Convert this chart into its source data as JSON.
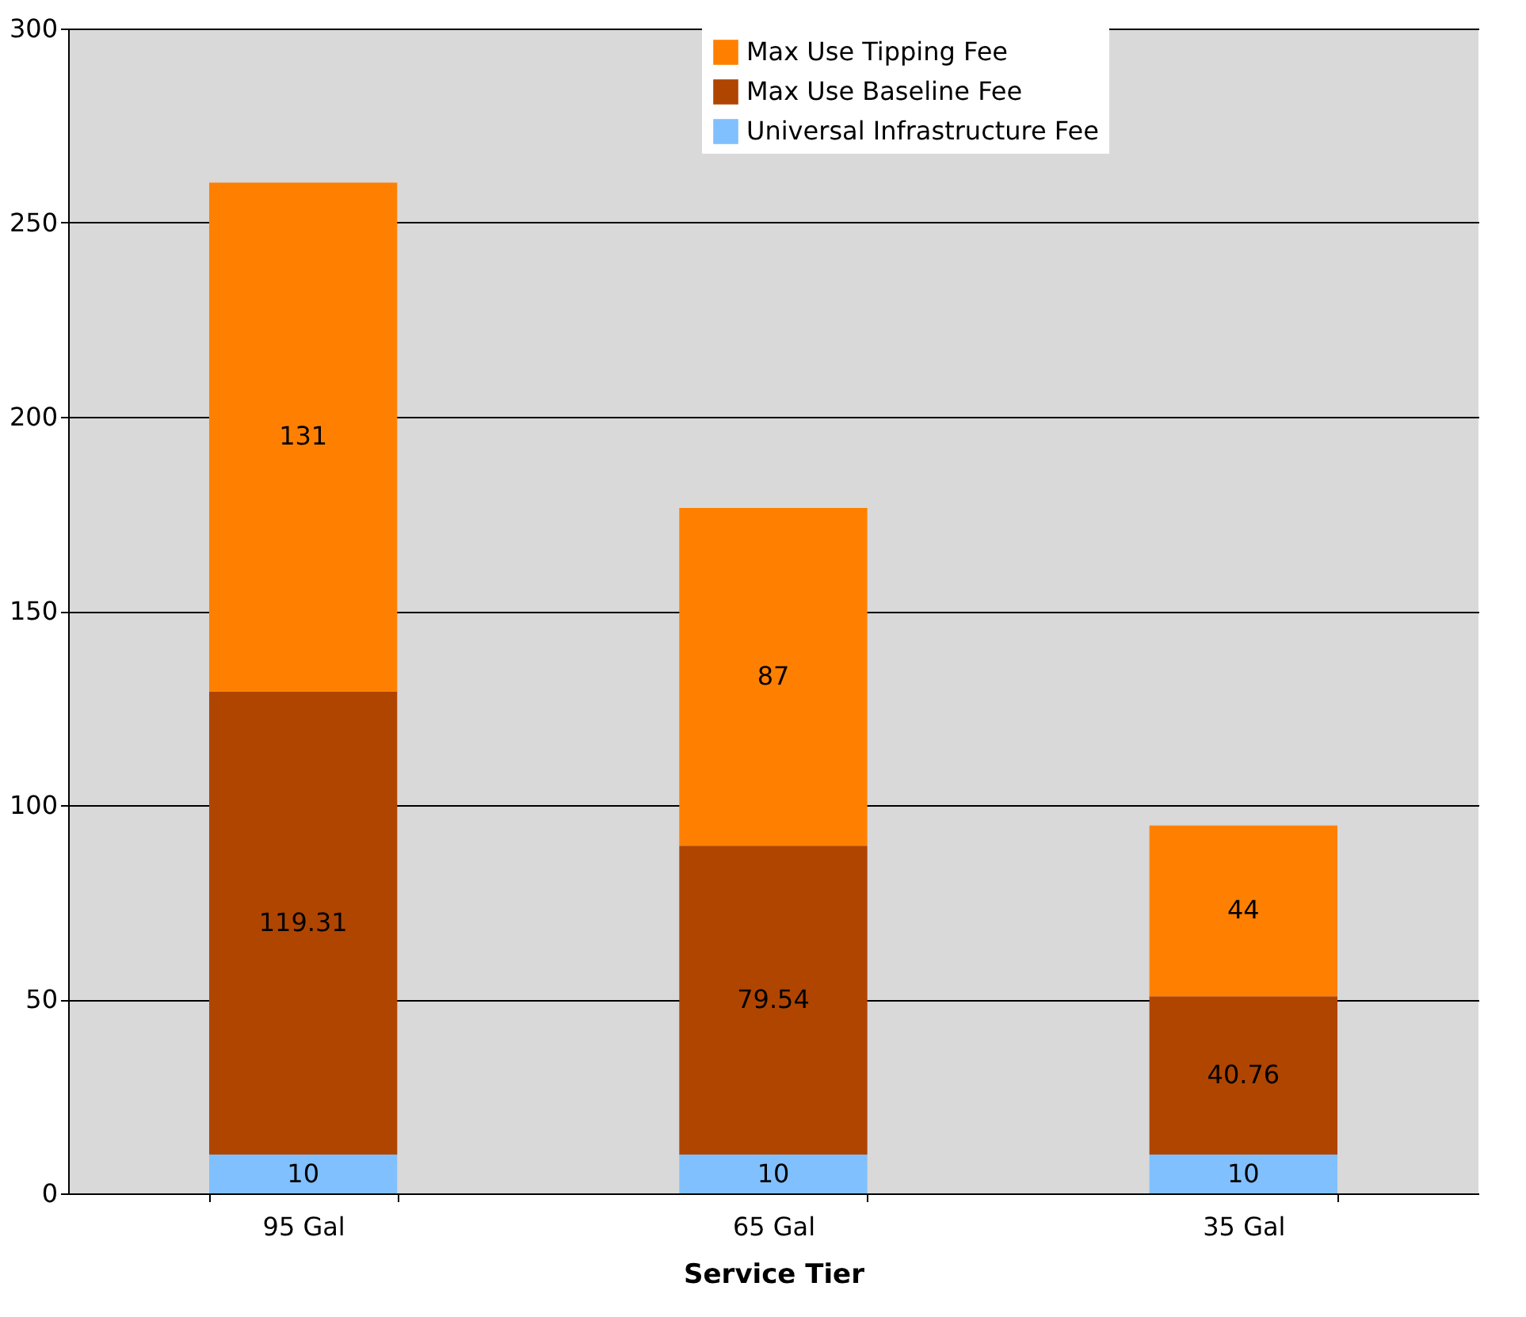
{
  "chart_data": {
    "type": "bar",
    "stacked": true,
    "xlabel": "Service Tier",
    "categories": [
      "95 Gal",
      "65 Gal",
      "35 Gal"
    ],
    "series": [
      {
        "name": "Universal Infrastructure Fee",
        "color": "#80c0ff",
        "values": [
          10,
          10,
          10
        ]
      },
      {
        "name": "Max Use Baseline Fee",
        "color": "#b04500",
        "values": [
          119.31,
          79.54,
          40.76
        ]
      },
      {
        "name": "Max Use Tipping Fee",
        "color": "#ff8000",
        "values": [
          131,
          87,
          44
        ]
      }
    ],
    "ylim": [
      0,
      300
    ],
    "yticks": [
      0,
      50,
      100,
      150,
      200,
      250,
      300
    ],
    "grid": "y",
    "data_labels": true,
    "legend": "top right"
  }
}
